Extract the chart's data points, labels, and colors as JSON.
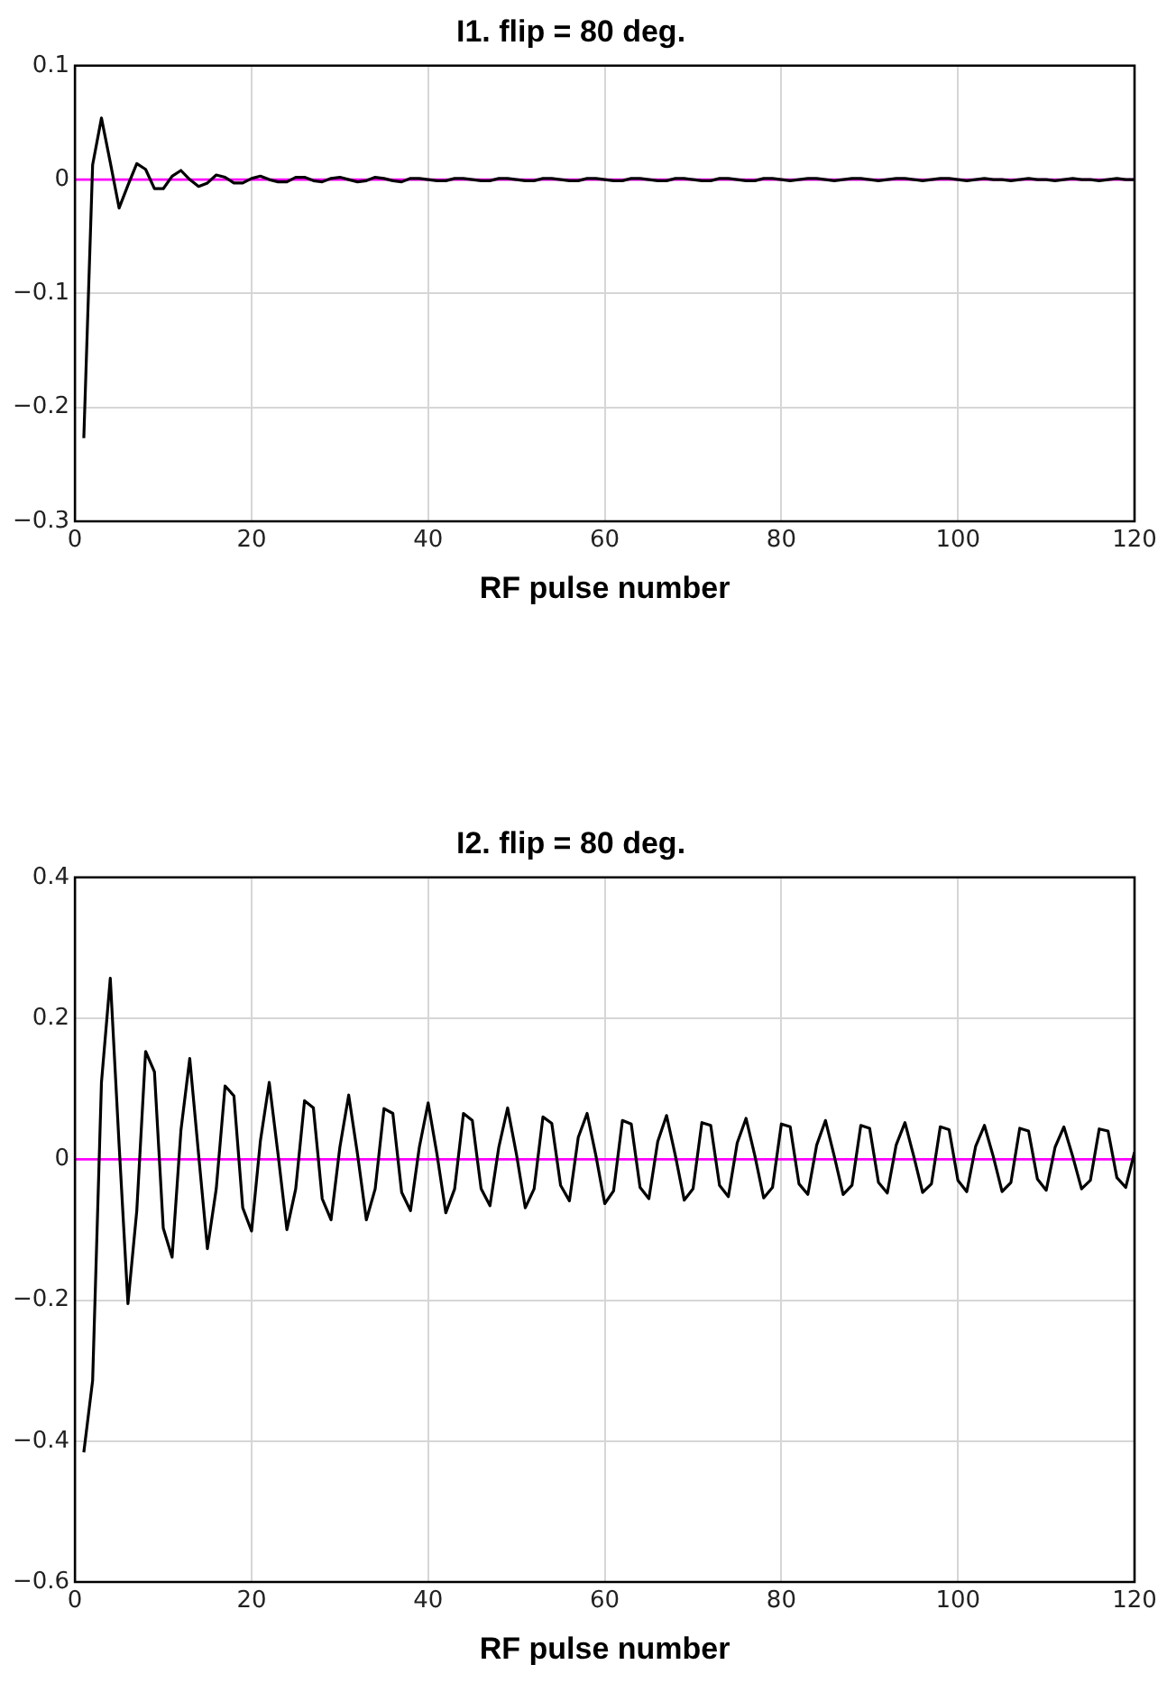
{
  "chart_data": [
    {
      "type": "line",
      "title": "I1. flip = 80 deg.",
      "xlabel": "RF pulse number",
      "xlim": [
        0,
        120
      ],
      "xticks": [
        0,
        20,
        40,
        60,
        80,
        100,
        120
      ],
      "ylim": [
        -0.3,
        0.1
      ],
      "yticks": [
        -0.3,
        -0.2,
        -0.1,
        0,
        0.1
      ],
      "grid": true,
      "legend": false,
      "marker": "none",
      "line_style": "solid",
      "ref_lines": [
        {
          "axis": "y",
          "value": 0,
          "color": "#ff00ff"
        }
      ],
      "x": [
        1,
        2,
        3,
        4,
        5,
        6,
        7,
        8,
        9,
        10,
        11,
        12,
        13,
        14,
        15,
        16,
        17,
        18,
        19,
        20,
        21,
        22,
        23,
        24,
        25,
        26,
        27,
        28,
        29,
        30,
        31,
        32,
        33,
        34,
        35,
        36,
        37,
        38,
        39,
        40,
        41,
        42,
        43,
        44,
        45,
        46,
        47,
        48,
        49,
        50,
        51,
        52,
        53,
        54,
        55,
        56,
        57,
        58,
        59,
        60,
        61,
        62,
        63,
        64,
        65,
        66,
        67,
        68,
        69,
        70,
        71,
        72,
        73,
        74,
        75,
        76,
        77,
        78,
        79,
        80,
        81,
        82,
        83,
        84,
        85,
        86,
        87,
        88,
        89,
        90,
        91,
        92,
        93,
        94,
        95,
        96,
        97,
        98,
        99,
        100,
        101,
        102,
        103,
        104,
        105,
        106,
        107,
        108,
        109,
        110,
        111,
        112,
        113,
        114,
        115,
        116,
        117,
        118,
        119,
        120
      ],
      "series": [
        {
          "color": "#000000",
          "values": [
            -0.227,
            0.013,
            0.054,
            0.015,
            -0.025,
            -0.005,
            0.014,
            0.009,
            -0.008,
            -0.008,
            0.003,
            0.008,
            0,
            -0.006,
            -0.003,
            0.004,
            0.002,
            -0.003,
            -0.003,
            0.001,
            0.003,
            0,
            -0.002,
            -0.002,
            0.002,
            0.002,
            -0.001,
            -0.002,
            0.001,
            0.002,
            0,
            -0.002,
            -0.001,
            0.002,
            0.001,
            -0.001,
            -0.002,
            0.001,
            0.001,
            0,
            -0.001,
            -0.001,
            0.001,
            0.001,
            0,
            -0.001,
            -0.001,
            0.001,
            0.001,
            0,
            -0.001,
            -0.001,
            0.001,
            0.001,
            0,
            -0.001,
            -0.001,
            0.001,
            0.001,
            0,
            -0.001,
            -0.001,
            0.001,
            0.001,
            0,
            -0.001,
            -0.001,
            0.001,
            0.001,
            0,
            -0.001,
            -0.001,
            0.001,
            0.001,
            0,
            -0.001,
            -0.001,
            0.001,
            0.001,
            0,
            -0.001,
            0,
            0.001,
            0.001,
            0,
            -0.001,
            0,
            0.001,
            0.001,
            0,
            -0.001,
            0,
            0.001,
            0.001,
            0,
            -0.001,
            0,
            0.001,
            0.001,
            0,
            -0.001,
            0,
            0.001,
            0,
            0,
            -0.001,
            0,
            0.001,
            0,
            0,
            -0.001,
            0,
            0.001,
            0,
            0,
            -0.001,
            0,
            0.001,
            0,
            0
          ]
        }
      ]
    },
    {
      "type": "line",
      "title": "I2. flip = 80 deg.",
      "xlabel": "RF pulse number",
      "xlim": [
        0,
        120
      ],
      "xticks": [
        0,
        20,
        40,
        60,
        80,
        100,
        120
      ],
      "ylim": [
        -0.6,
        0.4
      ],
      "yticks": [
        -0.6,
        -0.4,
        -0.2,
        0,
        0.2,
        0.4
      ],
      "grid": true,
      "legend": false,
      "marker": "none",
      "line_style": "solid",
      "ref_lines": [
        {
          "axis": "y",
          "value": 0,
          "color": "#ff00ff"
        }
      ],
      "x": [
        1,
        2,
        3,
        4,
        5,
        6,
        7,
        8,
        9,
        10,
        11,
        12,
        13,
        14,
        15,
        16,
        17,
        18,
        19,
        20,
        21,
        22,
        23,
        24,
        25,
        26,
        27,
        28,
        29,
        30,
        31,
        32,
        33,
        34,
        35,
        36,
        37,
        38,
        39,
        40,
        41,
        42,
        43,
        44,
        45,
        46,
        47,
        48,
        49,
        50,
        51,
        52,
        53,
        54,
        55,
        56,
        57,
        58,
        59,
        60,
        61,
        62,
        63,
        64,
        65,
        66,
        67,
        68,
        69,
        70,
        71,
        72,
        73,
        74,
        75,
        76,
        77,
        78,
        79,
        80,
        81,
        82,
        83,
        84,
        85,
        86,
        87,
        88,
        89,
        90,
        91,
        92,
        93,
        94,
        95,
        96,
        97,
        98,
        99,
        100,
        101,
        102,
        103,
        104,
        105,
        106,
        107,
        108,
        109,
        110,
        111,
        112,
        113,
        114,
        115,
        116,
        117,
        118,
        119,
        120
      ],
      "series": [
        {
          "color": "#000000",
          "values": [
            -0.416,
            -0.314,
            0.109,
            0.257,
            0.02,
            -0.205,
            -0.073,
            0.153,
            0.124,
            -0.098,
            -0.139,
            0.041,
            0.143,
            0.007,
            -0.127,
            -0.042,
            0.104,
            0.09,
            -0.069,
            -0.102,
            0.026,
            0.109,
            0.007,
            -0.1,
            -0.042,
            0.083,
            0.073,
            -0.056,
            -0.086,
            0.017,
            0.091,
            0.007,
            -0.086,
            -0.042,
            0.072,
            0.065,
            -0.047,
            -0.073,
            0.017,
            0.08,
            0.007,
            -0.076,
            -0.042,
            0.065,
            0.055,
            -0.042,
            -0.066,
            0.017,
            0.073,
            0.007,
            -0.069,
            -0.042,
            0.06,
            0.051,
            -0.037,
            -0.059,
            0.031,
            0.065,
            0.005,
            -0.063,
            -0.045,
            0.055,
            0.05,
            -0.04,
            -0.056,
            0.025,
            0.062,
            0.005,
            -0.058,
            -0.042,
            0.052,
            0.048,
            -0.037,
            -0.053,
            0.023,
            0.058,
            0.005,
            -0.055,
            -0.04,
            0.05,
            0.046,
            -0.035,
            -0.05,
            0.02,
            0.055,
            0.004,
            -0.05,
            -0.037,
            0.048,
            0.044,
            -0.033,
            -0.048,
            0.02,
            0.052,
            0.004,
            -0.047,
            -0.035,
            0.046,
            0.042,
            -0.03,
            -0.046,
            0.018,
            0.048,
            0.004,
            -0.046,
            -0.033,
            0.044,
            0.04,
            -0.028,
            -0.044,
            0.017,
            0.046,
            0.004,
            -0.042,
            -0.03,
            0.043,
            0.04,
            -0.026,
            -0.04,
            0.01
          ]
        }
      ]
    }
  ]
}
